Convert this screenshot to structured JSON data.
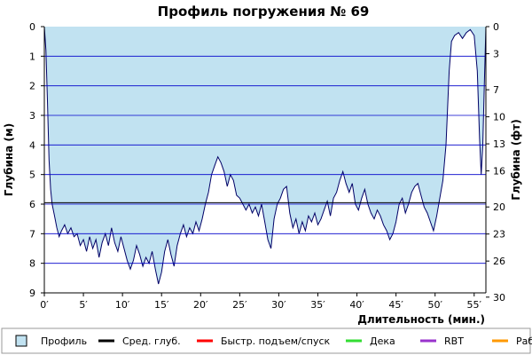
{
  "chart_data": {
    "type": "area",
    "title": "Профиль погружения № 69",
    "xlabel": "Длительность (мин.)",
    "ylabel_left": "Глубина (м)",
    "ylabel_right": "Глубина (фт)",
    "x_range": [
      0,
      56.5
    ],
    "y_range_m": [
      0,
      9
    ],
    "y_inverted": true,
    "x_ticks": [
      0,
      5,
      10,
      15,
      20,
      25,
      30,
      35,
      40,
      45,
      50,
      55
    ],
    "x_tick_labels": [
      "0′",
      "5′",
      "10′",
      "15′",
      "20′",
      "25′",
      "30′",
      "35′",
      "40′",
      "45′",
      "50′",
      "55′"
    ],
    "y_ticks_m": [
      0,
      1,
      2,
      3,
      4,
      5,
      6,
      7,
      8,
      9
    ],
    "y_tick_labels_m": [
      "0",
      "1",
      "2",
      "3",
      "4",
      "5",
      "6",
      "7",
      "8",
      "9"
    ],
    "y_ticks_ft": [
      0,
      3,
      7,
      10,
      13,
      16,
      20,
      23,
      26,
      30
    ],
    "y_tick_labels_ft": [
      "0",
      "3",
      "7",
      "10",
      "13",
      "16",
      "20",
      "23",
      "26",
      "30"
    ],
    "avg_depth_m": 5.95,
    "grid": true,
    "colors": {
      "profile_fill": "#c1e2f1",
      "profile_line": "#000066",
      "grid": "#0000cc",
      "avg_line": "#000000",
      "fast_ascent": "#ff0000",
      "deco": "#33dd33",
      "rbt": "#9933cc",
      "work": "#ff9900"
    },
    "legend": [
      {
        "label": "Профиль",
        "kind": "box",
        "color": "#c1e2f1"
      },
      {
        "label": "Сред. глуб.",
        "kind": "line",
        "color": "#000000"
      },
      {
        "label": "Быстр. подъем/спуск",
        "kind": "line",
        "color": "#ff0000"
      },
      {
        "label": "Дека",
        "kind": "line",
        "color": "#33dd33"
      },
      {
        "label": "RBT",
        "kind": "line",
        "color": "#9933cc"
      },
      {
        "label": "Раб.",
        "kind": "line",
        "color": "#ff9900"
      }
    ],
    "series": [
      {
        "values": [
          [
            0,
            0
          ],
          [
            0.2,
            0.8
          ],
          [
            0.4,
            2.5
          ],
          [
            0.6,
            4.5
          ],
          [
            0.8,
            5.5
          ],
          [
            1,
            6.0
          ],
          [
            1.3,
            6.4
          ],
          [
            1.6,
            6.8
          ],
          [
            1.9,
            7.1
          ],
          [
            2.2,
            6.9
          ],
          [
            2.6,
            6.7
          ],
          [
            3.0,
            7.0
          ],
          [
            3.4,
            6.8
          ],
          [
            3.8,
            7.1
          ],
          [
            4.2,
            7.0
          ],
          [
            4.6,
            7.4
          ],
          [
            5.0,
            7.2
          ],
          [
            5.4,
            7.6
          ],
          [
            5.8,
            7.1
          ],
          [
            6.2,
            7.5
          ],
          [
            6.6,
            7.2
          ],
          [
            7.0,
            7.8
          ],
          [
            7.4,
            7.3
          ],
          [
            7.8,
            7.0
          ],
          [
            8.2,
            7.4
          ],
          [
            8.6,
            6.8
          ],
          [
            9.0,
            7.3
          ],
          [
            9.4,
            7.6
          ],
          [
            9.8,
            7.1
          ],
          [
            10.2,
            7.5
          ],
          [
            10.6,
            7.9
          ],
          [
            11.0,
            8.2
          ],
          [
            11.4,
            7.9
          ],
          [
            11.8,
            7.4
          ],
          [
            12.2,
            7.7
          ],
          [
            12.6,
            8.1
          ],
          [
            13.0,
            7.8
          ],
          [
            13.4,
            8.0
          ],
          [
            13.8,
            7.6
          ],
          [
            14.2,
            8.2
          ],
          [
            14.6,
            8.7
          ],
          [
            15.0,
            8.3
          ],
          [
            15.4,
            7.6
          ],
          [
            15.8,
            7.2
          ],
          [
            16.2,
            7.7
          ],
          [
            16.6,
            8.1
          ],
          [
            17.0,
            7.4
          ],
          [
            17.4,
            7.0
          ],
          [
            17.8,
            6.7
          ],
          [
            18.2,
            7.1
          ],
          [
            18.6,
            6.8
          ],
          [
            19.0,
            7.0
          ],
          [
            19.4,
            6.6
          ],
          [
            19.8,
            6.9
          ],
          [
            20.2,
            6.5
          ],
          [
            20.6,
            6.0
          ],
          [
            21.0,
            5.6
          ],
          [
            21.4,
            5.0
          ],
          [
            21.8,
            4.7
          ],
          [
            22.2,
            4.4
          ],
          [
            22.6,
            4.6
          ],
          [
            23.0,
            4.9
          ],
          [
            23.4,
            5.4
          ],
          [
            23.8,
            5.0
          ],
          [
            24.2,
            5.2
          ],
          [
            24.6,
            5.7
          ],
          [
            25.0,
            5.8
          ],
          [
            25.4,
            6.0
          ],
          [
            25.8,
            6.2
          ],
          [
            26.2,
            6.0
          ],
          [
            26.6,
            6.3
          ],
          [
            27.0,
            6.1
          ],
          [
            27.4,
            6.4
          ],
          [
            27.8,
            6.0
          ],
          [
            28.2,
            6.6
          ],
          [
            28.6,
            7.2
          ],
          [
            29.0,
            7.5
          ],
          [
            29.4,
            6.5
          ],
          [
            29.8,
            6.0
          ],
          [
            30.2,
            5.8
          ],
          [
            30.6,
            5.5
          ],
          [
            31.0,
            5.4
          ],
          [
            31.4,
            6.3
          ],
          [
            31.8,
            6.8
          ],
          [
            32.2,
            6.5
          ],
          [
            32.6,
            7.0
          ],
          [
            33.0,
            6.6
          ],
          [
            33.4,
            6.9
          ],
          [
            33.8,
            6.4
          ],
          [
            34.2,
            6.6
          ],
          [
            34.6,
            6.3
          ],
          [
            35.0,
            6.7
          ],
          [
            35.4,
            6.5
          ],
          [
            35.8,
            6.2
          ],
          [
            36.2,
            5.9
          ],
          [
            36.6,
            6.4
          ],
          [
            37.0,
            5.8
          ],
          [
            37.4,
            5.6
          ],
          [
            37.8,
            5.2
          ],
          [
            38.2,
            4.9
          ],
          [
            38.6,
            5.3
          ],
          [
            39.0,
            5.6
          ],
          [
            39.4,
            5.3
          ],
          [
            39.8,
            6.0
          ],
          [
            40.2,
            6.2
          ],
          [
            40.6,
            5.8
          ],
          [
            41.0,
            5.5
          ],
          [
            41.4,
            6.0
          ],
          [
            41.8,
            6.3
          ],
          [
            42.2,
            6.5
          ],
          [
            42.6,
            6.2
          ],
          [
            43.0,
            6.4
          ],
          [
            43.4,
            6.7
          ],
          [
            43.8,
            6.9
          ],
          [
            44.2,
            7.2
          ],
          [
            44.6,
            7.0
          ],
          [
            45.0,
            6.6
          ],
          [
            45.4,
            6.0
          ],
          [
            45.8,
            5.8
          ],
          [
            46.2,
            6.3
          ],
          [
            46.6,
            6.0
          ],
          [
            47.0,
            5.6
          ],
          [
            47.4,
            5.4
          ],
          [
            47.8,
            5.3
          ],
          [
            48.2,
            5.7
          ],
          [
            48.6,
            6.1
          ],
          [
            49.0,
            6.3
          ],
          [
            49.4,
            6.6
          ],
          [
            49.8,
            6.9
          ],
          [
            50.2,
            6.4
          ],
          [
            50.6,
            5.8
          ],
          [
            51.0,
            5.2
          ],
          [
            51.4,
            4.0
          ],
          [
            51.8,
            1.5
          ],
          [
            52.1,
            0.5
          ],
          [
            52.5,
            0.3
          ],
          [
            53.0,
            0.2
          ],
          [
            53.5,
            0.4
          ],
          [
            54.0,
            0.2
          ],
          [
            54.5,
            0.1
          ],
          [
            55.0,
            0.3
          ],
          [
            55.4,
            1.5
          ],
          [
            55.7,
            3.8
          ],
          [
            55.9,
            5.0
          ],
          [
            56.1,
            4.0
          ],
          [
            56.3,
            2.0
          ],
          [
            56.5,
            0
          ]
        ]
      }
    ]
  }
}
